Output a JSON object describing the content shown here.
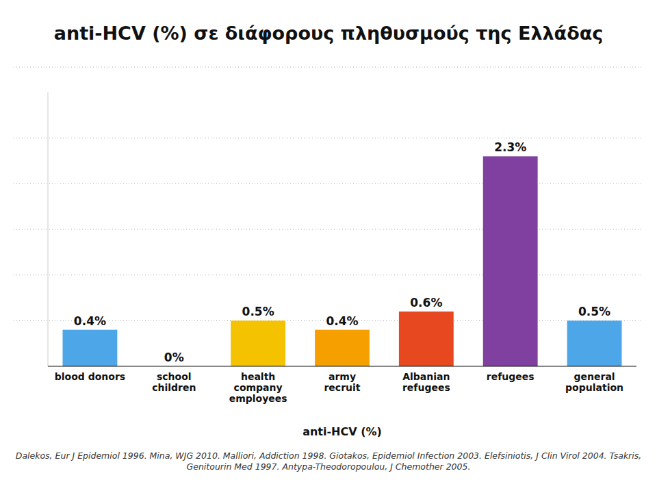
{
  "chart_data": {
    "type": "bar",
    "title": "anti-HCV (%) σε διάφορους πληθυσμούς της Ελλάδας",
    "x_label": "anti-HCV (%)",
    "categories": [
      "blood donors",
      "school\nchildren",
      "health\ncompany\nemployees",
      "army\nrecruit",
      "Albanian\nrefugees",
      "refugees",
      "general\npopulation"
    ],
    "values": [
      0.4,
      0.0,
      0.5,
      0.4,
      0.6,
      2.3,
      0.5
    ],
    "value_labels": [
      "0.4%",
      "0%",
      "0.5%",
      "0.4%",
      "0.6%",
      "2.3%",
      "0.5%"
    ],
    "colors": [
      "#4da6e8",
      "#ffffff",
      "#f5c200",
      "#f5a000",
      "#e84820",
      "#8040a0",
      "#4da6e8"
    ],
    "ylim": [
      0,
      3.0
    ],
    "yticks": [
      0.5,
      1.0,
      1.5,
      2.0,
      2.5
    ],
    "grid": true,
    "tick_labels": "x",
    "data_labels": true,
    "footnote": "Dalekos, Eur J Epidemiol 1996. Mina, WJG 2010. Malliori, Addiction 1998. Giotakos, Epidemiol Infection 2003. Elefsiniotis, J Clin Virol 2004. Tsakris,\nGenitourin Med 1997. Antypa-Theodoropoulou, J Chemother 2005."
  }
}
